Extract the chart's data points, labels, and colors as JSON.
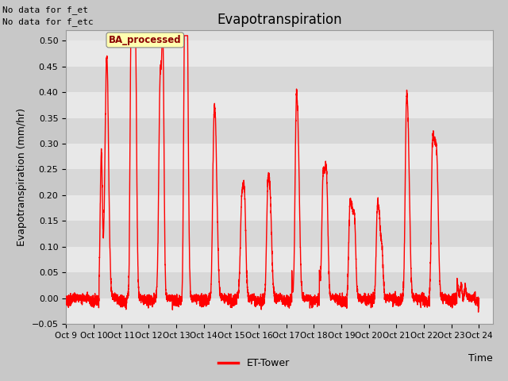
{
  "title": "Evapotranspiration",
  "ylabel": "Evapotranspiration (mm/hr)",
  "xlabel": "Time",
  "ylim": [
    -0.05,
    0.52
  ],
  "yticks": [
    -0.05,
    0.0,
    0.05,
    0.1,
    0.15,
    0.2,
    0.25,
    0.3,
    0.35,
    0.4,
    0.45,
    0.5
  ],
  "line_color": "#ff0000",
  "line_width": 1.0,
  "fig_bg_color": "#c8c8c8",
  "plot_bg_color": "#e0e0e0",
  "legend_label": "ET-Tower",
  "ba_box_label": "BA_processed",
  "no_data_text1": "No data for f_et",
  "no_data_text2": "No data for f_etc",
  "title_fontsize": 12,
  "axis_fontsize": 9,
  "tick_fontsize": 8,
  "xtick_labels": [
    "Oct 9",
    "Oct 10",
    "Oct 11",
    "Oct 12",
    "Oct 13",
    "Oct 14",
    "Oct 15",
    "Oct 16",
    "Oct 17",
    "Oct 18",
    "Oct 19",
    "Oct 20",
    "Oct 21",
    "Oct 22",
    "Oct 23",
    "Oct 24"
  ],
  "n_points": 5000,
  "band_colors": [
    "#e8e8e8",
    "#d8d8d8"
  ]
}
